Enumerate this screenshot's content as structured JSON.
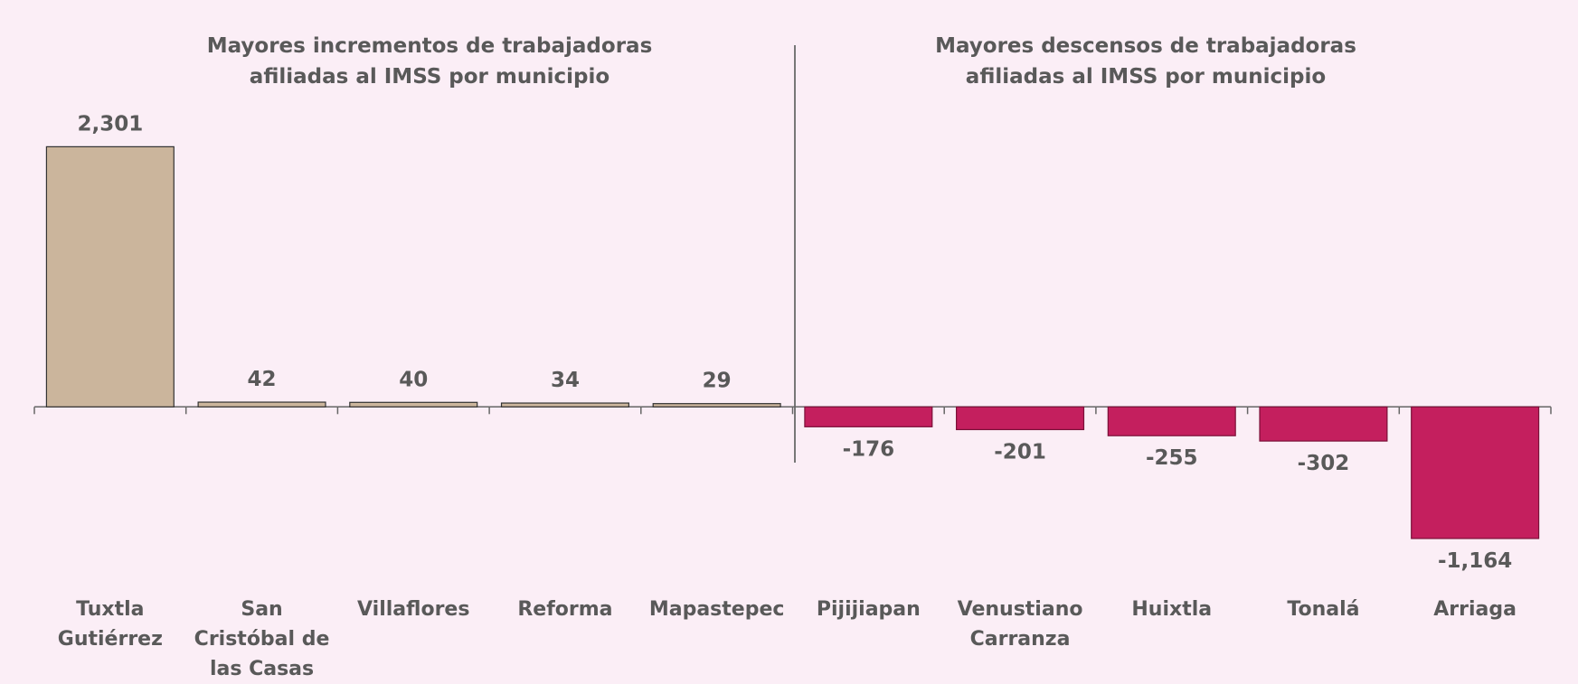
{
  "chart_data": {
    "type": "bar",
    "titles": [
      "Mayores incrementos de trabajadoras afiliadas al IMSS por municipio",
      "Mayores descensos de trabajadoras afiliadas al IMSS por municipio"
    ],
    "categories": [
      "Tuxtla Gutiérrez",
      "San Cristóbal de las Casas",
      "Villaflores",
      "Reforma",
      "Mapastepec",
      "Pijijiapan",
      "Venustiano Carranza",
      "Huixtla",
      "Tonalá",
      "Arriaga"
    ],
    "values": [
      2301,
      42,
      40,
      34,
      29,
      -176,
      -201,
      -255,
      -302,
      -1164
    ],
    "value_labels": [
      "2,301",
      "42",
      "40",
      "34",
      "29",
      "-176",
      "-201",
      "-255",
      "-302",
      "-1,164"
    ],
    "colors": [
      "#cbb59c",
      "#cbb59c",
      "#cbb59c",
      "#cbb59c",
      "#cbb59c",
      "#c41f5e",
      "#c41f5e",
      "#c41f5e",
      "#c41f5e",
      "#c41f5e"
    ],
    "ylim": [
      -1500,
      2400
    ]
  }
}
